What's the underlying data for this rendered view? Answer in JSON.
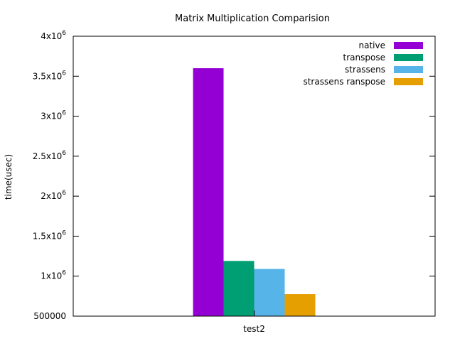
{
  "chart_data": {
    "type": "bar",
    "title": "Matrix Multiplication Comparision",
    "xlabel": "",
    "ylabel": "time(usec)",
    "categories": [
      "test2"
    ],
    "series": [
      {
        "name": "native",
        "values": [
          3600000
        ],
        "color": "#9400d3"
      },
      {
        "name": "transpose",
        "values": [
          1190000
        ],
        "color": "#009e73"
      },
      {
        "name": "strassens",
        "values": [
          1090000
        ],
        "color": "#56b4e9"
      },
      {
        "name": "strassens  ranspose",
        "values": [
          775000
        ],
        "color": "#e69f00"
      }
    ],
    "ylim": [
      500000,
      4000000
    ],
    "yticks": [
      {
        "value": 500000,
        "label": "500000",
        "sup": ""
      },
      {
        "value": 1000000,
        "label": "1x10",
        "sup": "6"
      },
      {
        "value": 1500000,
        "label": "1.5x10",
        "sup": "6"
      },
      {
        "value": 2000000,
        "label": "2x10",
        "sup": "6"
      },
      {
        "value": 2500000,
        "label": "2.5x10",
        "sup": "6"
      },
      {
        "value": 3000000,
        "label": "3x10",
        "sup": "6"
      },
      {
        "value": 3500000,
        "label": "3.5x10",
        "sup": "6"
      },
      {
        "value": 4000000,
        "label": "4x10",
        "sup": "6"
      }
    ],
    "legend_position": "top-right",
    "grid": false
  }
}
